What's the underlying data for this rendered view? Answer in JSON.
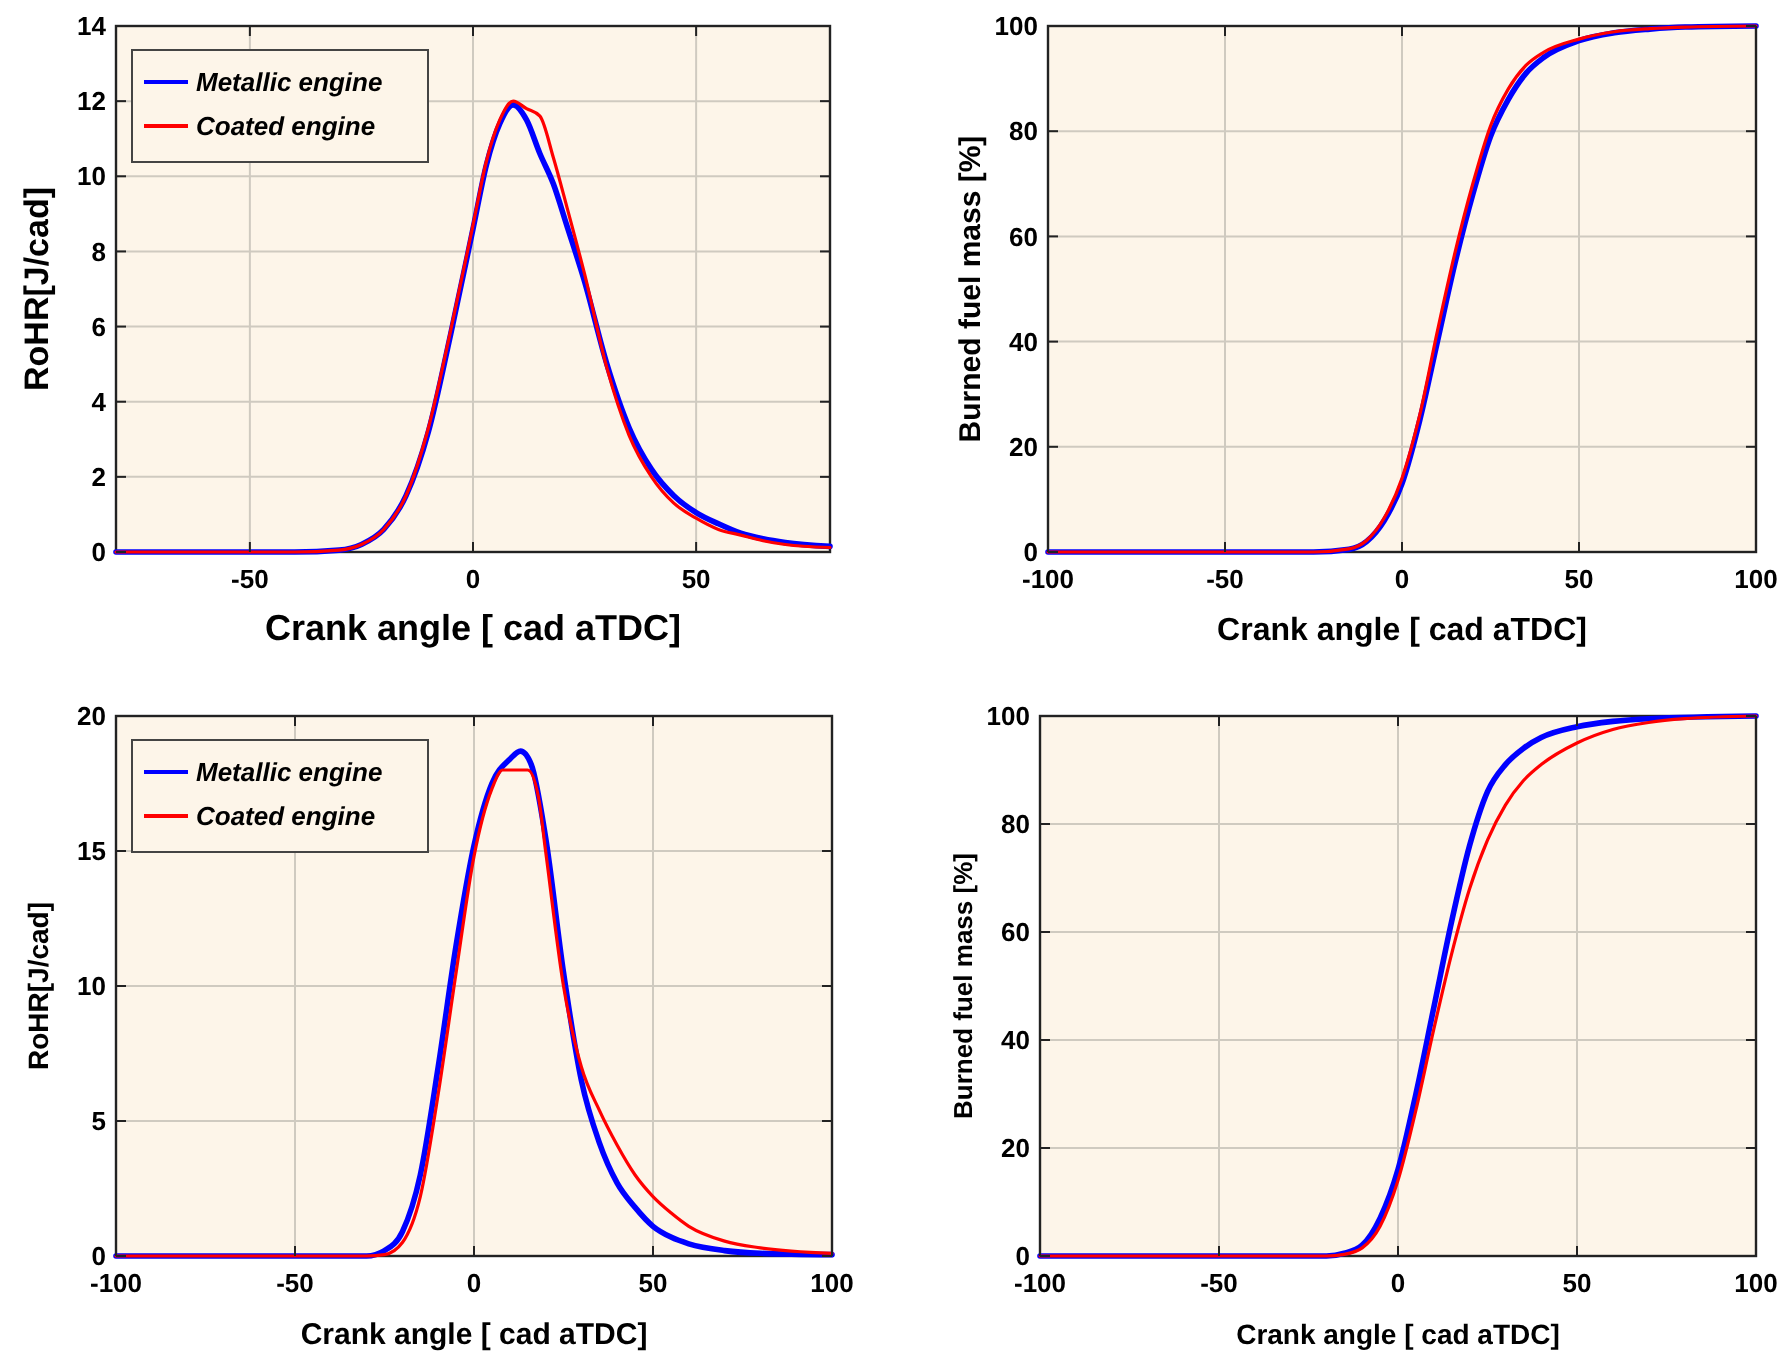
{
  "chart_data": [
    {
      "type": "line",
      "xlabel": "Crank angle [ cad aTDC]",
      "ylabel": "RoHR[J/cad]",
      "xlim": [
        -80,
        80
      ],
      "ylim": [
        0,
        14
      ],
      "xticks": [
        -50,
        0,
        50
      ],
      "yticks": [
        0,
        2,
        4,
        6,
        8,
        10,
        12,
        14
      ],
      "grid": true,
      "legend": "top left",
      "series": [
        {
          "name": "Metallic engine",
          "color": "#0000ff",
          "x": [
            -80,
            -40,
            -30,
            -25,
            -20,
            -15,
            -10,
            -5,
            0,
            3,
            6,
            9,
            12,
            15,
            18,
            21,
            25,
            30,
            35,
            40,
            45,
            50,
            55,
            60,
            65,
            70,
            80
          ],
          "values": [
            0,
            0,
            0.05,
            0.2,
            0.6,
            1.5,
            3.2,
            5.8,
            8.6,
            10.3,
            11.4,
            11.9,
            11.5,
            10.6,
            9.8,
            8.7,
            7.2,
            5.0,
            3.3,
            2.2,
            1.5,
            1.05,
            0.75,
            0.5,
            0.35,
            0.25,
            0.15
          ]
        },
        {
          "name": "Coated engine",
          "color": "#ff0000",
          "x": [
            -80,
            -40,
            -30,
            -25,
            -20,
            -15,
            -10,
            -5,
            0,
            3,
            6,
            9,
            12,
            15,
            18,
            21,
            25,
            30,
            35,
            40,
            45,
            50,
            55,
            60,
            65,
            70,
            80
          ],
          "values": [
            0,
            0,
            0.05,
            0.2,
            0.6,
            1.5,
            3.3,
            5.9,
            8.7,
            10.4,
            11.5,
            12.0,
            11.8,
            11.6,
            10.5,
            9.2,
            7.4,
            4.9,
            3.1,
            2.0,
            1.3,
            0.9,
            0.6,
            0.45,
            0.3,
            0.2,
            0.12
          ]
        }
      ]
    },
    {
      "type": "line",
      "xlabel": "Crank angle [ cad aTDC]",
      "ylabel": "Burned fuel mass [%]",
      "xlim": [
        -100,
        100
      ],
      "ylim": [
        0,
        100
      ],
      "xticks": [
        -100,
        -50,
        0,
        50,
        100
      ],
      "yticks": [
        0,
        20,
        40,
        60,
        80,
        100
      ],
      "grid": true,
      "series": [
        {
          "color": "#0000ff",
          "x": [
            -100,
            -25,
            -15,
            -10,
            -5,
            0,
            5,
            10,
            15,
            20,
            25,
            30,
            35,
            40,
            50,
            60,
            70,
            80,
            100
          ],
          "values": [
            0,
            0,
            0.5,
            2,
            6,
            13,
            25,
            40,
            55,
            68,
            79,
            86,
            91,
            94,
            97.2,
            98.7,
            99.4,
            99.8,
            100
          ]
        },
        {
          "color": "#ff0000",
          "x": [
            -100,
            -25,
            -15,
            -10,
            -5,
            0,
            5,
            10,
            15,
            20,
            25,
            30,
            35,
            40,
            50,
            60,
            70,
            80,
            100
          ],
          "values": [
            0,
            0,
            0.6,
            2.2,
            6.5,
            14,
            26,
            42,
            57,
            70,
            81,
            88,
            92.5,
            95,
            97.5,
            98.9,
            99.5,
            99.8,
            100
          ]
        }
      ]
    },
    {
      "type": "line",
      "xlabel": "Crank angle [ cad aTDC]",
      "ylabel": "RoHR[J/cad]",
      "xlim": [
        -100,
        100
      ],
      "ylim": [
        0,
        20
      ],
      "xticks": [
        -100,
        -50,
        0,
        50,
        100
      ],
      "yticks": [
        0,
        5,
        10,
        15,
        20
      ],
      "grid": true,
      "legend": "top left",
      "series": [
        {
          "name": "Metallic engine",
          "color": "#0000ff",
          "x": [
            -100,
            -30,
            -25,
            -20,
            -15,
            -10,
            -5,
            0,
            5,
            10,
            13,
            16,
            20,
            25,
            30,
            35,
            40,
            45,
            50,
            55,
            60,
            70,
            80,
            100
          ],
          "values": [
            0,
            0,
            0.2,
            0.9,
            3,
            7,
            11.5,
            15.2,
            17.5,
            18.4,
            18.7,
            18.2,
            15.5,
            10.5,
            6.5,
            4.2,
            2.7,
            1.8,
            1.1,
            0.7,
            0.45,
            0.2,
            0.1,
            0.05
          ]
        },
        {
          "name": "Coated engine",
          "color": "#ff0000",
          "x": [
            -100,
            -30,
            -25,
            -20,
            -15,
            -10,
            -5,
            0,
            5,
            8,
            15,
            18,
            20,
            25,
            30,
            35,
            40,
            45,
            50,
            55,
            60,
            70,
            80,
            100
          ],
          "values": [
            0,
            0,
            0.05,
            0.5,
            2.2,
            6,
            10.5,
            14.8,
            17.3,
            18,
            18,
            17,
            15,
            10,
            7,
            5.4,
            4.1,
            3,
            2.2,
            1.6,
            1.1,
            0.55,
            0.3,
            0.1
          ]
        }
      ]
    },
    {
      "type": "line",
      "xlabel": "Crank angle [ cad aTDC]",
      "ylabel": "Burned fuel mass [%]",
      "xlim": [
        -100,
        100
      ],
      "ylim": [
        0,
        100
      ],
      "xticks": [
        -100,
        -50,
        0,
        50,
        100
      ],
      "yticks": [
        0,
        20,
        40,
        60,
        80,
        100
      ],
      "grid": true,
      "series": [
        {
          "color": "#0000ff",
          "x": [
            -100,
            -20,
            -15,
            -10,
            -5,
            0,
            5,
            10,
            15,
            20,
            25,
            30,
            35,
            40,
            50,
            60,
            70,
            100
          ],
          "values": [
            0,
            0,
            0.5,
            2,
            7,
            16,
            30,
            46,
            62,
            76,
            86,
            91,
            94,
            96,
            98,
            99,
            99.5,
            100
          ]
        },
        {
          "color": "#ff0000",
          "x": [
            -100,
            -20,
            -15,
            -10,
            -5,
            0,
            5,
            10,
            15,
            20,
            25,
            30,
            35,
            40,
            50,
            60,
            70,
            80,
            100
          ],
          "values": [
            0,
            0,
            0.3,
            1.5,
            5.5,
            14,
            27,
            42,
            56,
            68,
            77,
            83.5,
            88,
            91,
            95,
            97.5,
            98.8,
            99.5,
            100
          ]
        }
      ]
    }
  ]
}
